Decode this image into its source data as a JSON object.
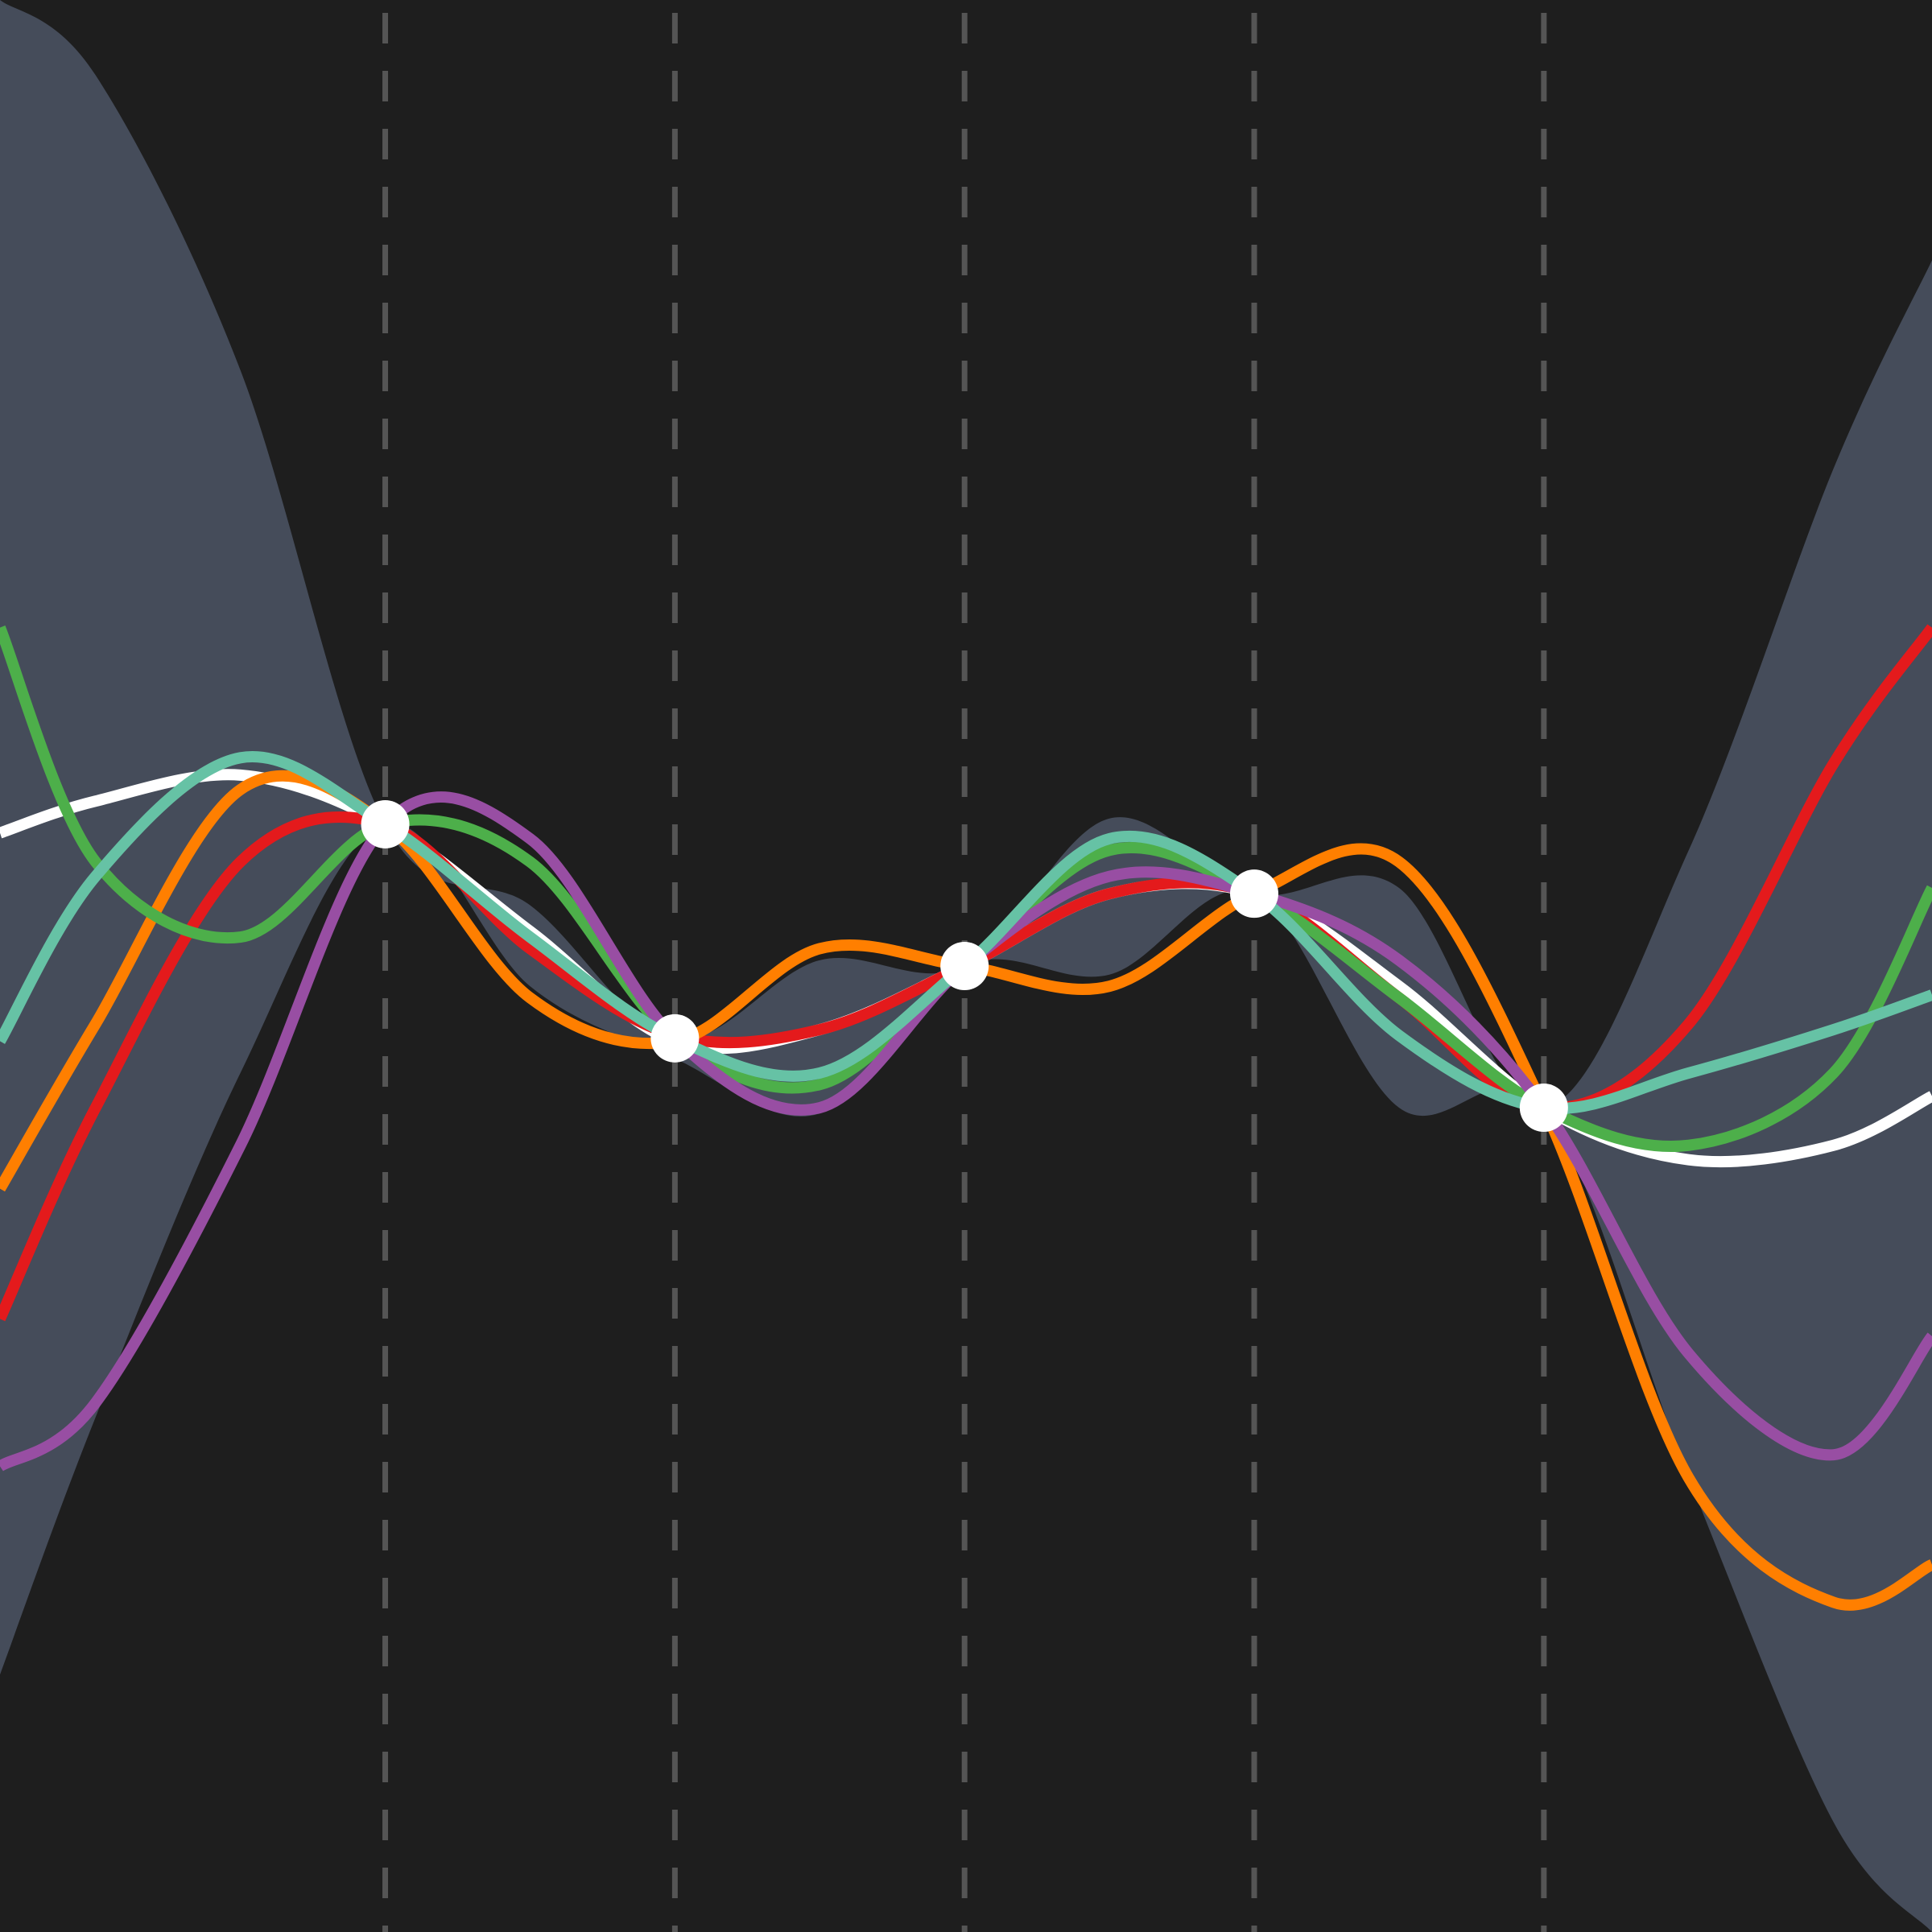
{
  "chart_data": {
    "type": "line",
    "background": "#1e1e1e",
    "xlim": [
      -0.33,
      6.34
    ],
    "ylim": [
      -3.34,
      3.34
    ],
    "x": [
      -0.33,
      0,
      0.5,
      1,
      1.5,
      2,
      2.5,
      3,
      3.5,
      4,
      4.5,
      5,
      5.5,
      6,
      6.34
    ],
    "band": {
      "color": "#454c5a",
      "upper": [
        3.34,
        3.08,
        2.06,
        0.49,
        0.21,
        -0.25,
        0.02,
        0,
        0.51,
        0.25,
        0.27,
        -0.49,
        0.4,
        1.72,
        2.44
      ],
      "lower": [
        -2.45,
        -1.56,
        -0.37,
        0.49,
        -0.07,
        -0.32,
        -0.51,
        0,
        -0.03,
        0.25,
        -0.49,
        -0.49,
        -1.77,
        -2.96,
        -3.34
      ]
    },
    "series": [
      {
        "color": "#ffffff",
        "values": [
          0.46,
          0.57,
          0.66,
          0.49,
          0.12,
          -0.26,
          -0.22,
          0,
          0.25,
          0.25,
          -0.07,
          -0.49,
          -0.67,
          -0.62,
          -0.45
        ]
      },
      {
        "color": "#e41a1c",
        "values": [
          -1.22,
          -0.49,
          0.36,
          0.49,
          0.06,
          -0.24,
          -0.22,
          0,
          0.25,
          0.25,
          -0.11,
          -0.49,
          -0.2,
          0.7,
          1.17
        ]
      },
      {
        "color": "#ff7f00",
        "values": [
          -0.77,
          -0.2,
          0.61,
          0.49,
          -0.11,
          -0.26,
          0.06,
          0,
          -0.07,
          0.25,
          0.36,
          -0.49,
          -1.77,
          -2.2,
          -2.07
        ]
      },
      {
        "color": "#4daf4a",
        "values": [
          1.17,
          0.36,
          0.1,
          0.49,
          0.36,
          -0.25,
          -0.41,
          0,
          0.4,
          0.25,
          -0.11,
          -0.49,
          -0.62,
          -0.37,
          0.27
        ]
      },
      {
        "color": "#984ea3",
        "values": [
          -1.73,
          -1.51,
          -0.62,
          0.49,
          0.44,
          -0.25,
          -0.49,
          0,
          0.31,
          0.25,
          0.02,
          -0.49,
          -1.34,
          -1.69,
          -1.28
        ]
      },
      {
        "color": "#66c2a5",
        "values": [
          -0.26,
          0.31,
          0.72,
          0.49,
          0.1,
          -0.25,
          -0.37,
          0,
          0.44,
          0.25,
          -0.24,
          -0.49,
          -0.37,
          -0.22,
          -0.1
        ]
      }
    ],
    "observations": {
      "color": "#ffffff",
      "line_color": "#555555",
      "x": [
        1,
        2,
        3,
        4,
        5
      ],
      "y": [
        0.49,
        -0.25,
        0,
        0.25,
        -0.49
      ]
    }
  }
}
